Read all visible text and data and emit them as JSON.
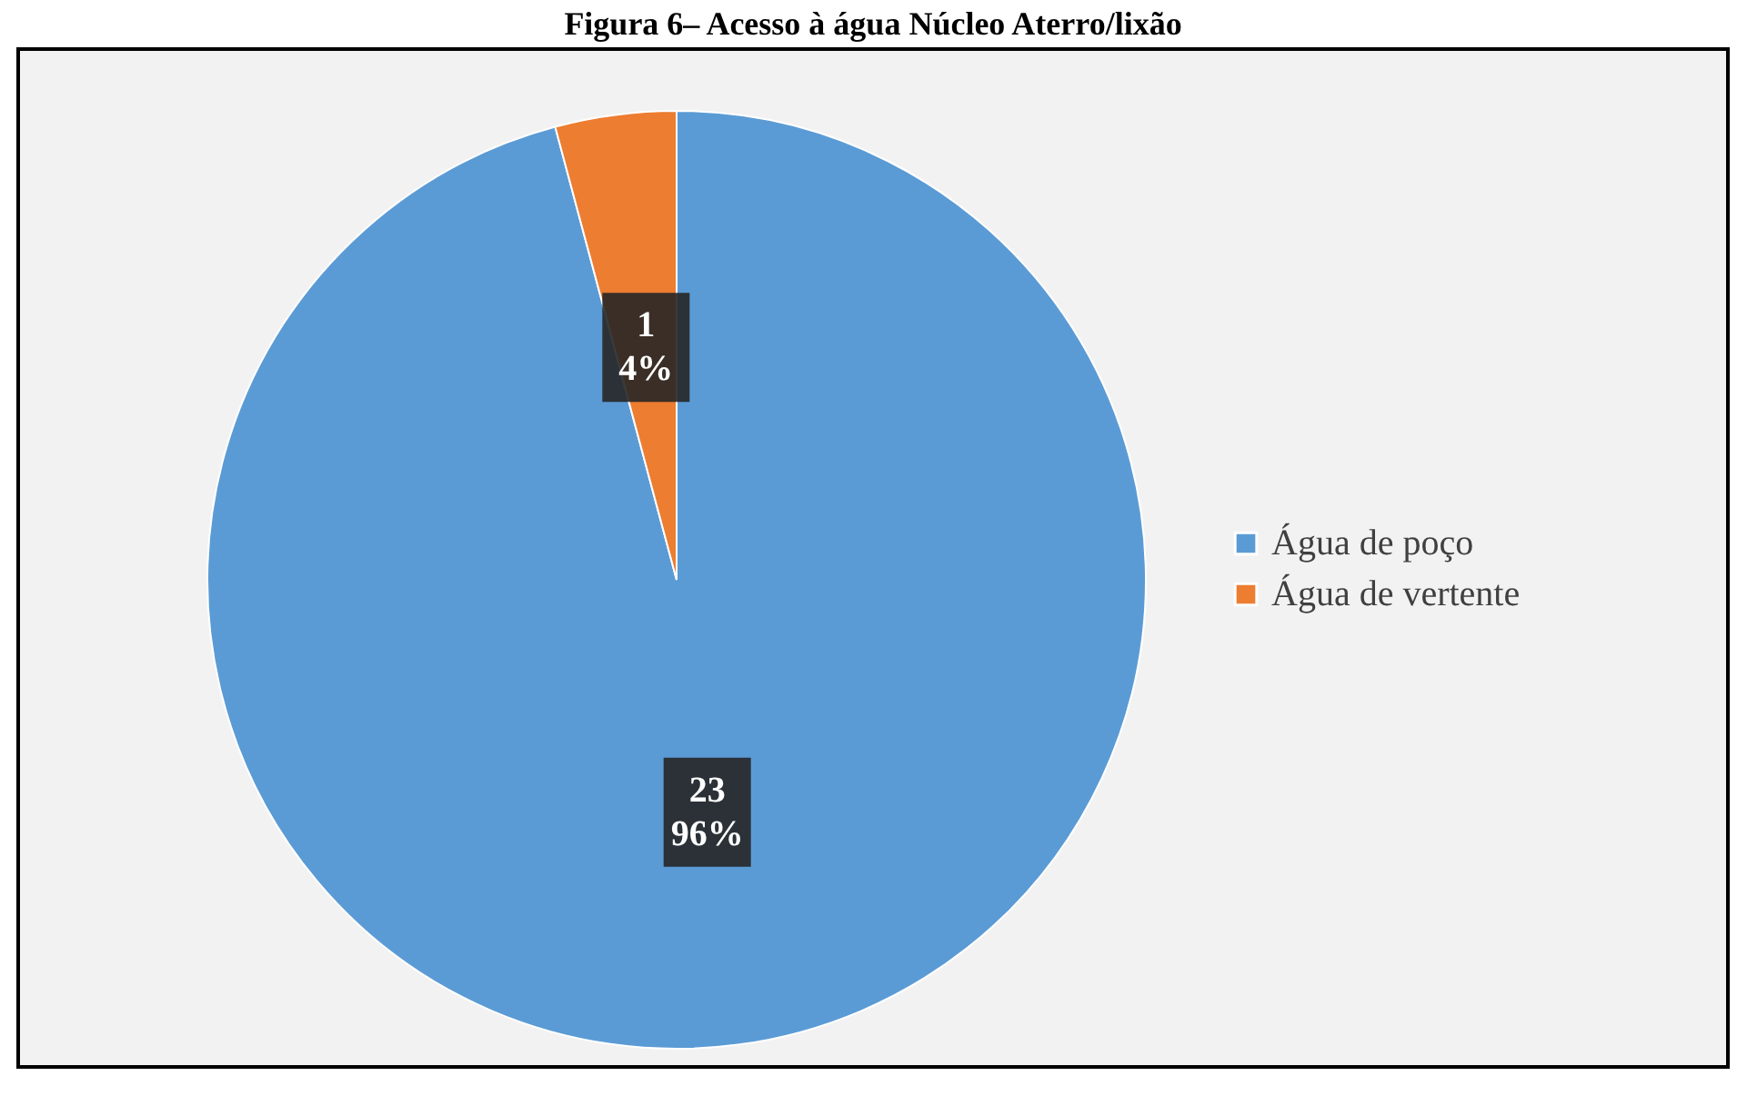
{
  "chart_data": {
    "type": "pie",
    "title": "Figura 6– Acesso à água Núcleo Aterro/lixão",
    "categories": [
      "Água de poço",
      "Água de vertente"
    ],
    "values": [
      23,
      1
    ],
    "colors": [
      "#5b9bd5",
      "#ed7d31"
    ],
    "value_labels": [
      "23\n96%",
      "1\n4%"
    ],
    "legend": "right"
  }
}
